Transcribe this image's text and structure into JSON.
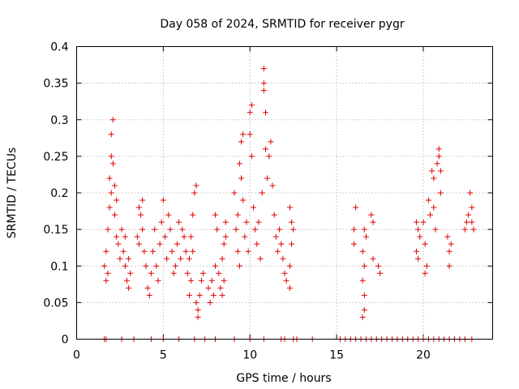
{
  "chart_data": {
    "type": "scatter",
    "title": "Day 058 of 2024, SRMTID for receiver pygr",
    "xlabel": "GPS time / hours",
    "ylabel": "SRMTID / TECUs",
    "xlim": [
      0,
      24
    ],
    "ylim": [
      0,
      0.4
    ],
    "xticks": [
      0,
      5,
      10,
      15,
      20
    ],
    "yticks": [
      0,
      0.05,
      0.1,
      0.15,
      0.2,
      0.25,
      0.3,
      0.35,
      0.4
    ],
    "xtick_labels": [
      "0",
      "5",
      "10",
      "15",
      "20"
    ],
    "ytick_labels": [
      "0",
      "0.05",
      "0.1",
      "0.15",
      "0.2",
      "0.25",
      "0.3",
      "0.35",
      "0.4"
    ],
    "grid": true,
    "marker": "+",
    "color": "#e00000",
    "series": [
      {
        "name": "SRMTID",
        "points": [
          [
            1.6,
            0.1
          ],
          [
            1.7,
            0.12
          ],
          [
            1.8,
            0.15
          ],
          [
            1.9,
            0.18
          ],
          [
            1.9,
            0.22
          ],
          [
            2.0,
            0.25
          ],
          [
            2.0,
            0.28
          ],
          [
            2.1,
            0.3
          ],
          [
            2.0,
            0.2
          ],
          [
            1.8,
            0.09
          ],
          [
            1.7,
            0.08
          ],
          [
            2.2,
            0.17
          ],
          [
            2.3,
            0.14
          ],
          [
            2.4,
            0.13
          ],
          [
            2.5,
            0.11
          ],
          [
            2.2,
            0.21
          ],
          [
            2.1,
            0.24
          ],
          [
            2.3,
            0.19
          ],
          [
            2.7,
            0.12
          ],
          [
            2.8,
            0.1
          ],
          [
            2.9,
            0.08
          ],
          [
            3.0,
            0.07
          ],
          [
            3.1,
            0.09
          ],
          [
            2.8,
            0.14
          ],
          [
            2.6,
            0.15
          ],
          [
            3.0,
            0.11
          ],
          [
            3.5,
            0.14
          ],
          [
            3.6,
            0.13
          ],
          [
            3.7,
            0.17
          ],
          [
            3.8,
            0.15
          ],
          [
            3.9,
            0.12
          ],
          [
            4.0,
            0.1
          ],
          [
            4.1,
            0.07
          ],
          [
            4.2,
            0.06
          ],
          [
            4.3,
            0.09
          ],
          [
            3.6,
            0.18
          ],
          [
            3.8,
            0.19
          ],
          [
            4.4,
            0.12
          ],
          [
            4.5,
            0.15
          ],
          [
            4.6,
            0.1
          ],
          [
            4.7,
            0.08
          ],
          [
            4.8,
            0.13
          ],
          [
            4.9,
            0.16
          ],
          [
            5.0,
            0.19
          ],
          [
            5.1,
            0.14
          ],
          [
            5.2,
            0.11
          ],
          [
            5.3,
            0.17
          ],
          [
            5.4,
            0.15
          ],
          [
            5.5,
            0.12
          ],
          [
            5.6,
            0.09
          ],
          [
            5.7,
            0.1
          ],
          [
            5.8,
            0.13
          ],
          [
            5.9,
            0.16
          ],
          [
            6.0,
            0.11
          ],
          [
            6.1,
            0.15
          ],
          [
            6.2,
            0.14
          ],
          [
            6.3,
            0.12
          ],
          [
            6.4,
            0.09
          ],
          [
            6.5,
            0.11
          ],
          [
            6.6,
            0.14
          ],
          [
            6.7,
            0.17
          ],
          [
            6.8,
            0.2
          ],
          [
            6.9,
            0.21
          ],
          [
            6.6,
            0.08
          ],
          [
            6.5,
            0.06
          ],
          [
            6.7,
            0.12
          ],
          [
            6.9,
            0.05
          ],
          [
            7.0,
            0.04
          ],
          [
            7.0,
            0.03
          ],
          [
            7.1,
            0.06
          ],
          [
            7.2,
            0.08
          ],
          [
            7.3,
            0.09
          ],
          [
            7.6,
            0.07
          ],
          [
            7.7,
            0.05
          ],
          [
            7.8,
            0.08
          ],
          [
            7.9,
            0.06
          ],
          [
            8.0,
            0.1
          ],
          [
            8.0,
            0.17
          ],
          [
            8.1,
            0.15
          ],
          [
            8.2,
            0.09
          ],
          [
            8.3,
            0.07
          ],
          [
            8.4,
            0.11
          ],
          [
            8.5,
            0.13
          ],
          [
            8.6,
            0.14
          ],
          [
            8.6,
            0.16
          ],
          [
            8.5,
            0.08
          ],
          [
            8.4,
            0.06
          ],
          [
            9.1,
            0.2
          ],
          [
            9.2,
            0.15
          ],
          [
            9.3,
            0.12
          ],
          [
            9.4,
            0.1
          ],
          [
            9.3,
            0.17
          ],
          [
            9.5,
            0.27
          ],
          [
            9.6,
            0.28
          ],
          [
            9.5,
            0.22
          ],
          [
            9.4,
            0.24
          ],
          [
            9.6,
            0.19
          ],
          [
            9.7,
            0.14
          ],
          [
            9.8,
            0.16
          ],
          [
            9.9,
            0.12
          ],
          [
            10.0,
            0.28
          ],
          [
            10.0,
            0.31
          ],
          [
            10.1,
            0.32
          ],
          [
            10.1,
            0.25
          ],
          [
            10.2,
            0.18
          ],
          [
            10.3,
            0.15
          ],
          [
            10.4,
            0.13
          ],
          [
            10.5,
            0.16
          ],
          [
            10.6,
            0.11
          ],
          [
            10.7,
            0.2
          ],
          [
            10.8,
            0.37
          ],
          [
            10.8,
            0.35
          ],
          [
            10.8,
            0.34
          ],
          [
            10.9,
            0.31
          ],
          [
            10.9,
            0.26
          ],
          [
            11.0,
            0.22
          ],
          [
            11.1,
            0.25
          ],
          [
            11.2,
            0.27
          ],
          [
            11.3,
            0.21
          ],
          [
            11.4,
            0.17
          ],
          [
            11.5,
            0.14
          ],
          [
            11.6,
            0.12
          ],
          [
            11.7,
            0.15
          ],
          [
            11.8,
            0.13
          ],
          [
            11.9,
            0.11
          ],
          [
            12.0,
            0.09
          ],
          [
            12.1,
            0.08
          ],
          [
            12.3,
            0.18
          ],
          [
            12.4,
            0.16
          ],
          [
            12.4,
            0.13
          ],
          [
            12.3,
            0.1
          ],
          [
            12.3,
            0.07
          ],
          [
            12.5,
            0.15
          ],
          [
            16.0,
            0.15
          ],
          [
            16.1,
            0.18
          ],
          [
            16.0,
            0.13
          ],
          [
            16.5,
            0.12
          ],
          [
            16.6,
            0.1
          ],
          [
            16.5,
            0.08
          ],
          [
            16.6,
            0.06
          ],
          [
            16.6,
            0.04
          ],
          [
            16.5,
            0.03
          ],
          [
            16.7,
            0.14
          ],
          [
            16.6,
            0.15
          ],
          [
            17.0,
            0.17
          ],
          [
            17.1,
            0.16
          ],
          [
            17.1,
            0.11
          ],
          [
            17.4,
            0.1
          ],
          [
            17.5,
            0.09
          ],
          [
            19.6,
            0.12
          ],
          [
            19.7,
            0.11
          ],
          [
            19.6,
            0.16
          ],
          [
            19.7,
            0.15
          ],
          [
            19.8,
            0.14
          ],
          [
            20.0,
            0.16
          ],
          [
            20.1,
            0.13
          ],
          [
            20.1,
            0.09
          ],
          [
            20.2,
            0.1
          ],
          [
            20.3,
            0.19
          ],
          [
            20.4,
            0.17
          ],
          [
            20.5,
            0.23
          ],
          [
            20.6,
            0.22
          ],
          [
            20.6,
            0.18
          ],
          [
            20.7,
            0.15
          ],
          [
            20.8,
            0.24
          ],
          [
            20.9,
            0.25
          ],
          [
            20.9,
            0.26
          ],
          [
            21.0,
            0.23
          ],
          [
            21.0,
            0.2
          ],
          [
            21.4,
            0.14
          ],
          [
            21.5,
            0.12
          ],
          [
            21.5,
            0.1
          ],
          [
            21.6,
            0.13
          ],
          [
            22.4,
            0.15
          ],
          [
            22.5,
            0.16
          ],
          [
            22.6,
            0.17
          ],
          [
            22.7,
            0.2
          ],
          [
            22.8,
            0.18
          ],
          [
            22.8,
            0.16
          ],
          [
            22.9,
            0.15
          ],
          [
            1.6,
            0
          ],
          [
            1.7,
            0
          ],
          [
            2.6,
            0
          ],
          [
            3.3,
            0
          ],
          [
            4.3,
            0
          ],
          [
            5.0,
            0
          ],
          [
            5.9,
            0
          ],
          [
            6.8,
            0
          ],
          [
            7.4,
            0
          ],
          [
            8.0,
            0
          ],
          [
            9.1,
            0
          ],
          [
            10.0,
            0
          ],
          [
            10.8,
            0
          ],
          [
            11.8,
            0
          ],
          [
            12.0,
            0
          ],
          [
            12.5,
            0
          ],
          [
            12.7,
            0
          ],
          [
            13.6,
            0
          ],
          [
            15.2,
            0
          ],
          [
            15.5,
            0
          ],
          [
            15.8,
            0
          ],
          [
            16.1,
            0
          ],
          [
            16.4,
            0
          ],
          [
            16.7,
            0
          ],
          [
            17.0,
            0
          ],
          [
            17.3,
            0
          ],
          [
            17.6,
            0
          ],
          [
            17.9,
            0
          ],
          [
            18.2,
            0
          ],
          [
            18.5,
            0
          ],
          [
            18.8,
            0
          ],
          [
            19.1,
            0
          ],
          [
            19.4,
            0
          ],
          [
            19.7,
            0
          ],
          [
            20.0,
            0
          ],
          [
            20.3,
            0
          ],
          [
            20.6,
            0
          ],
          [
            20.9,
            0
          ],
          [
            21.2,
            0
          ],
          [
            21.5,
            0
          ],
          [
            21.8,
            0
          ],
          [
            22.1,
            0
          ],
          [
            22.4,
            0
          ],
          [
            22.8,
            0
          ]
        ]
      }
    ]
  }
}
